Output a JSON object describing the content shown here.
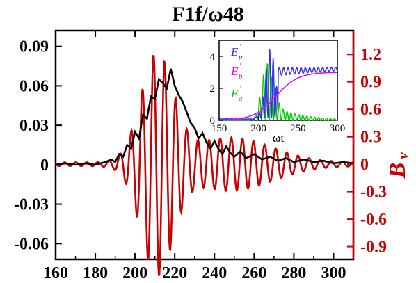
{
  "chart_data": {
    "type": "line",
    "title": "F1f/ω48",
    "xlabel": "",
    "x_ticks": [
      "160",
      "180",
      "200",
      "220",
      "240",
      "260",
      "280",
      "300"
    ],
    "xlim": [
      160,
      310
    ],
    "left_axis": {
      "ylabel": "",
      "ylim": [
        -0.072,
        0.102
      ],
      "ticks": [
        "0.09",
        "0.06",
        "0.03",
        "0",
        "-0.03",
        "-0.06"
      ],
      "tick_values": [
        0.09,
        0.06,
        0.03,
        0,
        -0.03,
        -0.06
      ]
    },
    "right_axis": {
      "ylabel": "B",
      "ylabel_sub": "v",
      "ylim": [
        -1.04,
        1.46
      ],
      "ticks": [
        "1.2",
        "0.9",
        "0.6",
        "0.3",
        "0",
        "-0.3",
        "-0.6",
        "-0.9"
      ],
      "tick_values": [
        1.2,
        0.9,
        0.6,
        0.3,
        0,
        -0.3,
        -0.6,
        -0.9
      ]
    },
    "series": [
      {
        "axis": "left",
        "color": "#000000",
        "x": [
          160,
          165,
          170,
          175,
          180,
          185,
          188,
          190,
          192,
          194,
          196,
          198,
          200,
          202,
          204,
          206,
          208,
          210,
          212,
          214,
          216,
          218,
          220,
          222,
          224,
          226,
          228,
          230,
          232,
          234,
          236,
          238,
          240,
          242,
          244,
          246,
          248,
          250,
          253,
          256,
          260,
          264,
          268,
          272,
          276,
          280,
          285,
          290,
          295,
          300,
          305,
          310
        ],
        "y": [
          0.0,
          0.001,
          0.0,
          0.001,
          0.0,
          0.002,
          0.004,
          0.002,
          0.008,
          0.006,
          0.015,
          0.012,
          0.025,
          0.02,
          0.038,
          0.035,
          0.052,
          0.05,
          0.065,
          0.062,
          0.058,
          0.073,
          0.06,
          0.053,
          0.048,
          0.04,
          0.032,
          0.028,
          0.02,
          0.024,
          0.017,
          0.012,
          0.018,
          0.012,
          0.008,
          0.014,
          0.009,
          0.006,
          0.01,
          0.005,
          0.008,
          0.004,
          0.006,
          0.003,
          0.005,
          0.002,
          0.004,
          0.002,
          0.003,
          0.001,
          0.002,
          0.001
        ]
      },
      {
        "axis": "right",
        "color": "#cc0000",
        "x_start": 160,
        "x_end": 310,
        "period": 5.6,
        "phase_x": 209.3,
        "peak_center": 211,
        "peak_amplitude": 1.15,
        "peak_width": 11.5,
        "tail_amplitude": 0.27,
        "tail_center": 248,
        "tail_width": 30
      }
    ],
    "inset": {
      "xlabel": "ωt",
      "xlim": [
        150,
        300
      ],
      "ylim": [
        0,
        5
      ],
      "x_ticks": [
        "150",
        "200",
        "250",
        "300"
      ],
      "y_ticks": [
        "0",
        "2",
        "4"
      ],
      "legend": [
        {
          "label": "E",
          "sub": "p",
          "sup": "′",
          "color": "#3333ee"
        },
        {
          "label": "E",
          "sub": "b",
          "sup": "′",
          "color": "#ee00ee"
        },
        {
          "label": "E",
          "sub": "a",
          "sup": "′",
          "color": "#00cc00"
        }
      ],
      "series": [
        {
          "name": "E_p",
          "color": "#3333ee"
        },
        {
          "name": "E_b",
          "color": "#ee00ee"
        },
        {
          "name": "E_a",
          "color": "#00cc00"
        }
      ]
    }
  }
}
